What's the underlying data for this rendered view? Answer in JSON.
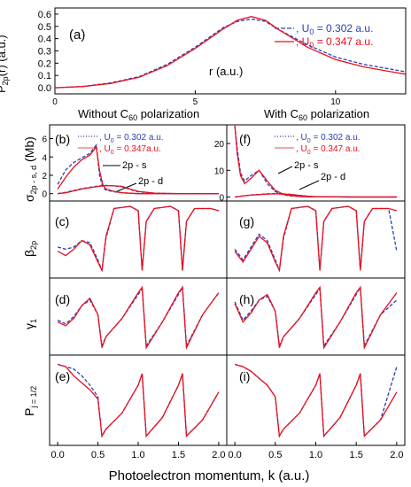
{
  "colors": {
    "blue": "#2a3fb4",
    "red": "#e8101e",
    "axis": "#000000",
    "dot_gray": "#666666"
  },
  "headings": {
    "left": "Without C",
    "left_sub": "60",
    "left_tail": " polarization",
    "right": "With C",
    "right_sub": "60",
    "right_tail": " polarization"
  },
  "x_axis_label": "Photoelectron momentum, k (a.u.)",
  "y_labels": {
    "top_main": "P",
    "top_sub": "2p",
    "top_tail": "(r) (a.u.)",
    "sigma_main": "σ",
    "sigma_sub": "2p - s, d",
    "sigma_tail": " (Mb)",
    "beta_main": "β",
    "beta_sub": "2p",
    "gamma_main": "γ",
    "gamma_sub": "1",
    "pol_main": "P",
    "pol_sub": "j = 1/2"
  },
  "panel_labels": [
    "(a)",
    "(b)",
    "(c)",
    "(d)",
    "(e)",
    "(f)",
    "(g)",
    "(h)",
    "(i)"
  ],
  "legends": {
    "a": [
      {
        "text_pre": ", U",
        "sub": "0",
        "text_post": " = 0.302 a.u.",
        "color": "#2a3fb4",
        "style": "dash"
      },
      {
        "text_pre": ", U",
        "sub": "0",
        "text_post": " = 0.347 a.u.",
        "color": "#e8101e",
        "style": "solid"
      }
    ],
    "b": [
      {
        "text_pre": ", U",
        "sub": "0",
        "text_post": " = 0.302 a.u.",
        "color": "#2a3fb4",
        "style": "dot"
      },
      {
        "text_pre": ", U",
        "sub": "0",
        "text_post": " = 0.347a.u.",
        "color": "#e8101e",
        "style": "thin"
      }
    ],
    "f": [
      {
        "text_pre": ", U",
        "sub": "0",
        "text_post": " = 0.302 a.u.",
        "color": "#2a3fb4",
        "style": "dot"
      },
      {
        "text_pre": ", U",
        "sub": "0",
        "text_post": " = 0.347 a.u.",
        "color": "#e8101e",
        "style": "thin"
      }
    ]
  },
  "annotations": {
    "ps": "2p - s",
    "pd": "2p - d",
    "r_label": "r (a.u.)"
  },
  "chart_data": [
    {
      "id": "a",
      "type": "line",
      "x": [
        0,
        1,
        2,
        3,
        4,
        5,
        6,
        6.5,
        7,
        7.5,
        8,
        9,
        10,
        11,
        12,
        12.5
      ],
      "xticks": [
        0,
        5,
        10
      ],
      "yticks": [
        0.0,
        0.1,
        0.2,
        0.3,
        0.4,
        0.5,
        0.6
      ],
      "xlim": [
        0,
        12.5
      ],
      "ylim": [
        -0.05,
        0.65
      ],
      "xlabel": "r (a.u.)",
      "series": [
        {
          "values": [
            0.0,
            0.01,
            0.04,
            0.09,
            0.19,
            0.33,
            0.49,
            0.54,
            0.56,
            0.54,
            0.47,
            0.35,
            0.25,
            0.19,
            0.15,
            0.13
          ]
        },
        {
          "values": [
            0.0,
            0.01,
            0.035,
            0.085,
            0.18,
            0.32,
            0.48,
            0.55,
            0.58,
            0.55,
            0.47,
            0.33,
            0.23,
            0.17,
            0.13,
            0.11
          ]
        }
      ]
    },
    {
      "id": "b",
      "type": "line",
      "x": [
        0,
        0.1,
        0.2,
        0.3,
        0.4,
        0.48,
        0.52,
        0.56,
        0.6,
        0.7,
        0.8,
        0.9,
        1.0,
        1.2,
        1.5,
        2.0
      ],
      "xlim": [
        -0.1,
        2.1
      ],
      "ylim": [
        -0.8,
        7.5
      ],
      "yticks": [
        0,
        2,
        4,
        6
      ],
      "series": [
        {
          "name": "2p - s",
          "values": [
            1.0,
            2.6,
            3.4,
            3.9,
            4.4,
            5.3,
            2.0,
            0.7,
            0.4,
            0.2,
            0.1,
            0.05,
            0.0,
            0.0,
            0.0,
            0.0
          ]
        },
        {
          "name": "2p - s",
          "values": [
            0.5,
            1.8,
            2.9,
            3.7,
            4.2,
            5.1,
            2.5,
            1.0,
            0.5,
            0.25,
            0.1,
            0.05,
            0.0,
            0.0,
            0.0,
            0.0
          ]
        },
        {
          "name": "2p - d",
          "values": [
            0.0,
            0.15,
            0.35,
            0.55,
            0.7,
            0.8,
            0.85,
            0.9,
            0.9,
            0.85,
            0.75,
            0.45,
            0.2,
            0.05,
            0.0,
            0.0
          ]
        },
        {
          "name": "2p - d",
          "values": [
            0.0,
            0.1,
            0.3,
            0.5,
            0.65,
            0.75,
            0.8,
            0.85,
            0.88,
            0.85,
            0.8,
            0.5,
            0.25,
            0.05,
            0.0,
            0.0
          ]
        }
      ]
    },
    {
      "id": "f",
      "type": "line",
      "x": [
        0,
        0.03,
        0.07,
        0.12,
        0.2,
        0.3,
        0.4,
        0.5,
        0.6,
        0.7,
        0.8,
        0.9,
        1.0,
        1.5,
        2.0
      ],
      "xlim": [
        -0.1,
        2.1
      ],
      "ylim": [
        -1.5,
        27
      ],
      "yticks": [
        0,
        10,
        20
      ],
      "series": [
        {
          "name": "2p - s",
          "values": [
            27,
            18,
            9,
            6,
            8,
            10,
            5,
            2,
            0.8,
            0.4,
            0.2,
            0.1,
            0.05,
            0.0,
            0.0
          ]
        },
        {
          "name": "2p - s",
          "values": [
            27,
            16,
            8,
            5,
            7,
            10,
            6,
            2.5,
            1.0,
            0.5,
            0.2,
            0.1,
            0.05,
            0.0,
            0.0
          ]
        },
        {
          "name": "2p - d",
          "values": [
            0.0,
            0.1,
            0.3,
            0.5,
            0.8,
            1.0,
            1.2,
            1.3,
            1.2,
            1.0,
            0.6,
            0.3,
            0.1,
            0.0,
            0.0
          ]
        },
        {
          "name": "2p - d",
          "values": [
            0.0,
            0.1,
            0.25,
            0.45,
            0.7,
            0.9,
            1.1,
            1.2,
            1.1,
            0.9,
            0.6,
            0.3,
            0.1,
            0.0,
            0.0
          ]
        }
      ]
    },
    {
      "id": "c",
      "type": "line",
      "x": [
        0,
        0.1,
        0.2,
        0.3,
        0.4,
        0.5,
        0.55,
        0.6,
        0.7,
        0.9,
        1.0,
        1.05,
        1.1,
        1.2,
        1.4,
        1.5,
        1.55,
        1.6,
        1.7,
        1.9,
        2.0
      ],
      "xlim": [
        -0.1,
        2.1
      ],
      "ylim": [
        -1.35,
        2.25
      ],
      "series": [
        {
          "values": [
            0.1,
            0.0,
            0.1,
            0.4,
            0.3,
            -0.5,
            -1.0,
            0.5,
            1.9,
            2.0,
            1.8,
            -1.0,
            1.3,
            1.9,
            2.0,
            1.8,
            -1.0,
            1.3,
            1.9,
            1.9,
            1.8
          ]
        },
        {
          "values": [
            -0.1,
            -0.3,
            0.0,
            0.4,
            0.2,
            -0.6,
            -1.0,
            0.6,
            1.9,
            2.0,
            1.8,
            -1.0,
            1.3,
            1.9,
            2.0,
            1.8,
            -1.0,
            1.3,
            1.9,
            1.9,
            1.8
          ]
        }
      ]
    },
    {
      "id": "g",
      "type": "line",
      "x": [
        0,
        0.1,
        0.2,
        0.3,
        0.4,
        0.5,
        0.55,
        0.6,
        0.7,
        0.9,
        1.0,
        1.05,
        1.1,
        1.2,
        1.4,
        1.5,
        1.55,
        1.6,
        1.7,
        1.9,
        2.0
      ],
      "xlim": [
        -0.1,
        2.1
      ],
      "ylim": [
        -1.35,
        2.25
      ],
      "series": [
        {
          "values": [
            0.0,
            -0.5,
            0.1,
            0.7,
            0.4,
            -0.5,
            -1.0,
            0.5,
            1.9,
            2.0,
            1.8,
            -1.0,
            1.3,
            1.9,
            2.0,
            1.8,
            -1.0,
            1.3,
            1.9,
            1.9,
            -0.1
          ]
        },
        {
          "values": [
            -0.1,
            -0.6,
            0.0,
            0.6,
            0.3,
            -0.6,
            -1.0,
            0.6,
            1.9,
            2.0,
            1.8,
            -1.0,
            1.3,
            1.9,
            2.0,
            1.8,
            -1.0,
            1.3,
            1.9,
            1.9,
            1.8
          ]
        }
      ]
    },
    {
      "id": "d",
      "type": "line",
      "x": [
        0,
        0.1,
        0.2,
        0.3,
        0.4,
        0.5,
        0.55,
        0.6,
        0.8,
        1.0,
        1.05,
        1.1,
        1.3,
        1.5,
        1.55,
        1.6,
        1.8,
        2.0
      ],
      "xlim": [
        -0.1,
        2.1
      ],
      "ylim": [
        -1.4,
        0.7
      ],
      "series": [
        {
          "values": [
            -0.45,
            -0.55,
            -0.35,
            -0.05,
            0.1,
            -0.3,
            -1.15,
            -0.9,
            -0.4,
            0.25,
            0.4,
            -1.15,
            -0.5,
            0.25,
            0.45,
            -1.15,
            -0.3,
            0.3
          ]
        },
        {
          "values": [
            -0.5,
            -0.6,
            -0.4,
            -0.05,
            0.15,
            -0.3,
            -1.2,
            -0.9,
            -0.4,
            0.3,
            0.45,
            -1.2,
            -0.5,
            0.3,
            0.45,
            -1.2,
            -0.3,
            0.3
          ]
        }
      ]
    },
    {
      "id": "h",
      "type": "line",
      "x": [
        0,
        0.1,
        0.2,
        0.3,
        0.4,
        0.5,
        0.55,
        0.6,
        0.8,
        1.0,
        1.05,
        1.1,
        1.3,
        1.5,
        1.55,
        1.6,
        1.8,
        2.0
      ],
      "xlim": [
        -0.1,
        2.1
      ],
      "ylim": [
        -1.4,
        0.7
      ],
      "series": [
        {
          "values": [
            0.05,
            -0.45,
            -0.2,
            0.1,
            0.2,
            -0.2,
            -1.15,
            -0.9,
            -0.4,
            0.25,
            0.4,
            -1.15,
            -0.5,
            0.25,
            0.45,
            -1.15,
            -0.3,
            0.1
          ]
        },
        {
          "values": [
            0.0,
            -0.5,
            -0.25,
            0.1,
            0.25,
            -0.2,
            -1.2,
            -0.9,
            -0.4,
            0.3,
            0.45,
            -1.2,
            -0.5,
            0.3,
            0.45,
            -1.2,
            -0.3,
            0.3
          ]
        }
      ]
    },
    {
      "id": "e",
      "type": "line",
      "x": [
        0,
        0.1,
        0.2,
        0.3,
        0.4,
        0.5,
        0.55,
        0.6,
        0.8,
        1.0,
        1.05,
        1.1,
        1.3,
        1.5,
        1.55,
        1.6,
        1.8,
        2.0
      ],
      "xlim": [
        -0.1,
        2.1
      ],
      "ylim": [
        -0.75,
        1.2
      ],
      "series": [
        {
          "values": [
            1.0,
            0.95,
            0.9,
            0.75,
            0.55,
            0.3,
            -0.55,
            -0.4,
            -0.05,
            0.55,
            0.8,
            -0.55,
            -0.15,
            0.55,
            0.8,
            -0.55,
            -0.2,
            0.4
          ]
        },
        {
          "values": [
            1.0,
            0.95,
            0.75,
            0.6,
            0.45,
            0.25,
            -0.55,
            -0.4,
            -0.05,
            0.55,
            0.8,
            -0.55,
            -0.15,
            0.55,
            0.8,
            -0.55,
            -0.2,
            0.4
          ]
        }
      ]
    },
    {
      "id": "i",
      "type": "line",
      "x": [
        0,
        0.1,
        0.2,
        0.3,
        0.4,
        0.5,
        0.55,
        0.6,
        0.8,
        1.0,
        1.05,
        1.1,
        1.3,
        1.5,
        1.55,
        1.6,
        1.8,
        2.0
      ],
      "xlim": [
        -0.1,
        2.1
      ],
      "ylim": [
        -0.75,
        1.2
      ],
      "series": [
        {
          "values": [
            1.0,
            0.95,
            0.85,
            0.7,
            0.55,
            0.3,
            -0.55,
            -0.4,
            -0.05,
            0.55,
            0.8,
            -0.55,
            -0.15,
            0.55,
            0.8,
            -0.55,
            -0.2,
            0.95
          ]
        },
        {
          "values": [
            1.0,
            0.95,
            0.85,
            0.7,
            0.55,
            0.3,
            -0.55,
            -0.4,
            -0.05,
            0.55,
            0.8,
            -0.55,
            -0.15,
            0.55,
            0.8,
            -0.55,
            -0.2,
            0.4
          ]
        }
      ]
    }
  ],
  "bottom_xticks": [
    "0.0",
    "0.5",
    "1.0",
    "1.5",
    "2.0"
  ],
  "bottom_xtick_values": [
    0,
    0.5,
    1.0,
    1.5,
    2.0
  ]
}
